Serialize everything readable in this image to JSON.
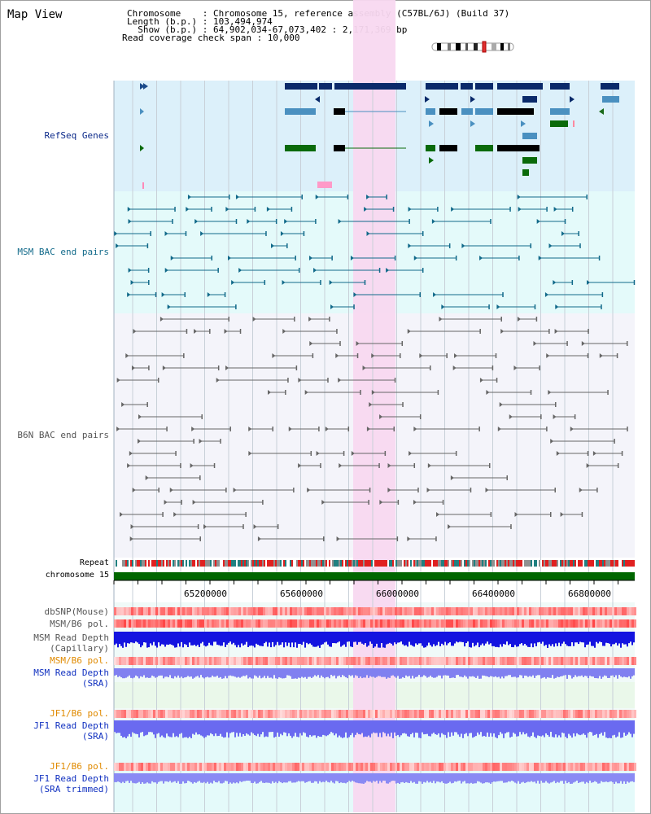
{
  "title": "Map View",
  "header": {
    "chromosome_label": "Chromosome    : Chromosome 15, reference assembly (C57BL/6J) (Build 37)",
    "length_label": "Length (b.p.) : 103,494,974",
    "show_label": "  Show (b.p.) : 64,902,034-67,073,402 : 2,171,369 bp",
    "coverage_label": "Read coverage check span : 10,000"
  },
  "tracks": {
    "refseq": "RefSeq Genes",
    "msm_bac": "MSM BAC end pairs",
    "b6n_bac": "B6N BAC end pairs",
    "repeat": "Repeat",
    "chromosome": "chromosome 15",
    "dbsnp": "dbSNP(Mouse)",
    "msm_b6_pol_1": "MSM/B6 pol.",
    "msm_depth_cap_1": "MSM Read Depth",
    "msm_depth_cap_2": "(Capillary)",
    "msm_b6_pol_2": "MSM/B6 pol.",
    "msm_depth_sra_1": "MSM Read Depth",
    "msm_depth_sra_2": "(SRA)",
    "jf1_b6_pol_1": "JF1/B6 pol.",
    "jf1_depth_sra_1": "JF1 Read Depth",
    "jf1_depth_sra_2": "(SRA)",
    "jf1_b6_pol_2": "JF1/B6 pol.",
    "jf1_depth_trim_1": "JF1 Read Depth",
    "jf1_depth_trim_2": "(SRA trimmed)"
  },
  "axis_ticks": [
    "65200000",
    "65600000",
    "66000000",
    "66400000",
    "66800000"
  ],
  "colors": {
    "refseq_bg": "#dcf0fa",
    "msm_bg": "#e4fafa",
    "b6n_bg": "#f4f4fa",
    "highlight": "#f8d8f0",
    "chromosome": "#006600",
    "depth_blue": "#1010e0",
    "depth_light": "#7878f0"
  }
}
